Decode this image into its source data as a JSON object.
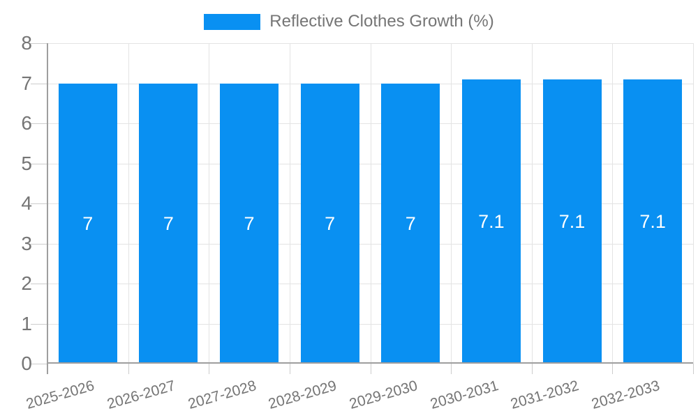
{
  "chart_data": {
    "type": "bar",
    "title": "",
    "legend": "Reflective Clothes Growth (%)",
    "legend_position": "top-center",
    "categories": [
      "2025-2026",
      "2026-2027",
      "2027-2028",
      "2028-2029",
      "2029-2030",
      "2030-2031",
      "2031-2032",
      "2032-2033"
    ],
    "series": [
      {
        "name": "Reflective Clothes Growth (%)",
        "values": [
          7,
          7,
          7,
          7,
          7,
          7.1,
          7.1,
          7.1
        ],
        "labels": [
          "7",
          "7",
          "7",
          "7",
          "7",
          "7.1",
          "7.1",
          "7.1"
        ]
      }
    ],
    "xlabel": "",
    "ylabel": "",
    "ylim": [
      0,
      8
    ],
    "yticks": [
      0,
      1,
      2,
      3,
      4,
      5,
      6,
      7,
      8
    ],
    "grid": true,
    "x_label_rotation_deg": -16,
    "colors": {
      "bar": "#0990F2",
      "bar_label": "#ffffff",
      "axis_text": "#757575",
      "gridline": "#e3e3e3",
      "tick": "#cccccc",
      "axis_line": "#9e9e9e",
      "background": "#ffffff"
    }
  }
}
